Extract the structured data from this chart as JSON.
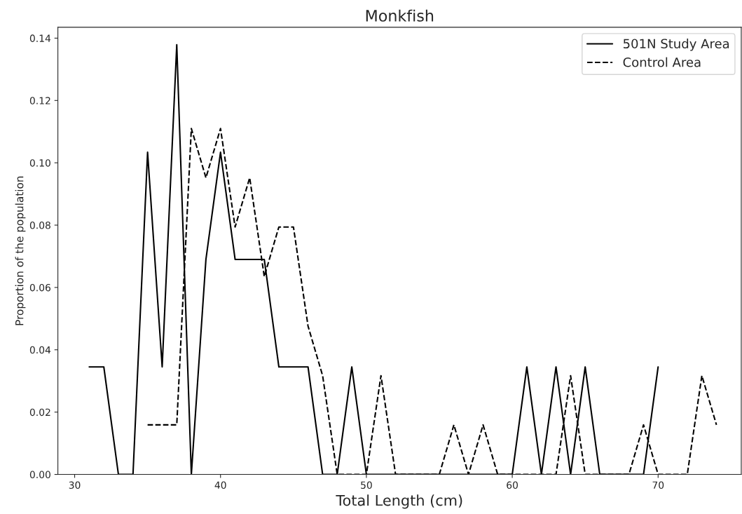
{
  "chart_data": {
    "type": "line",
    "title": "Monkfish",
    "xlabel": "Total Length (cm)",
    "ylabel": "Proportion of the population",
    "xlim": [
      28.85,
      75.7
    ],
    "xticks": [
      30,
      40,
      50,
      60,
      70
    ],
    "ylim": [
      0,
      0.1435
    ],
    "yticks": [
      {
        "value": 0,
        "label": "0.00"
      },
      0.02,
      0.04,
      0.06,
      0.08,
      {
        "value": 0.1,
        "label": "0.10"
      },
      0.12,
      0.14
    ],
    "legend": "top right",
    "grid": false,
    "marker": "none",
    "series": [
      {
        "name": "501N Study Area",
        "color": "#000000",
        "line_style": "solid",
        "x": [
          31,
          32,
          33,
          34,
          35,
          36,
          37,
          38,
          39,
          40,
          41,
          42,
          43,
          44,
          45,
          46,
          47,
          48,
          49,
          50,
          51,
          52,
          53,
          54,
          55,
          56,
          57,
          58,
          59,
          60,
          61,
          62,
          63,
          64,
          65,
          66,
          67,
          68,
          69,
          70
        ],
        "values": [
          0.0345,
          0.0345,
          0,
          0,
          0.1034,
          0.0345,
          0.1379,
          0,
          0.069,
          0.1034,
          0.069,
          0.069,
          0.069,
          0.0345,
          0.0345,
          0.0345,
          0,
          0,
          0.0345,
          0,
          0,
          0,
          0,
          0,
          0,
          0,
          0,
          0,
          0,
          0,
          0.0345,
          0,
          0.0345,
          0,
          0.0345,
          0,
          0,
          0,
          0,
          0.0345
        ]
      },
      {
        "name": "Control Area",
        "color": "#000000",
        "line_style": "dashed",
        "x": [
          35,
          36,
          37,
          38,
          39,
          40,
          41,
          42,
          43,
          44,
          45,
          46,
          47,
          48,
          49,
          50,
          51,
          52,
          53,
          54,
          55,
          56,
          57,
          58,
          59,
          60,
          61,
          62,
          63,
          64,
          65,
          66,
          67,
          68,
          69,
          70,
          71,
          72,
          73,
          74
        ],
        "values": [
          0.0159,
          0.0159,
          0.0159,
          0.111,
          0.0952,
          0.111,
          0.0794,
          0.0952,
          0.0635,
          0.0794,
          0.0794,
          0.0476,
          0.0317,
          0,
          0,
          0,
          0.0317,
          0,
          0,
          0,
          0,
          0.0159,
          0,
          0.0159,
          0,
          0,
          0,
          0,
          0,
          0.0317,
          0,
          0,
          0,
          0,
          0.0159,
          0,
          0,
          0,
          0.0317,
          0.0159
        ]
      }
    ]
  }
}
